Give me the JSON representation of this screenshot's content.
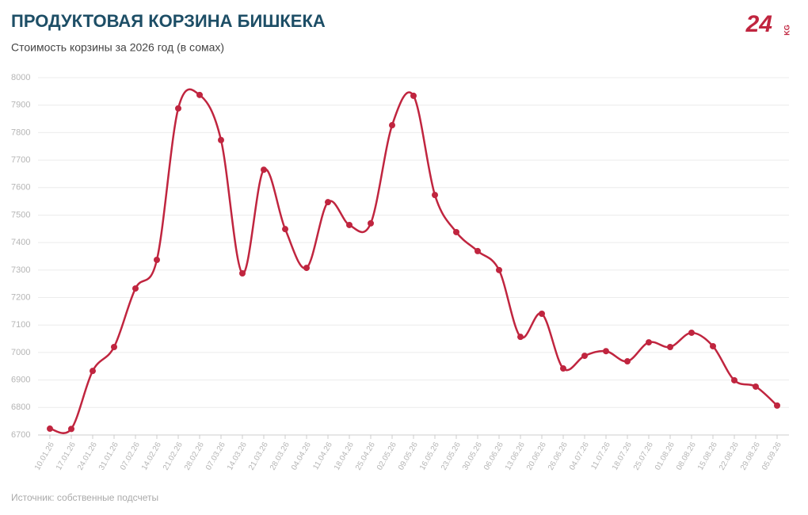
{
  "chart_data": {
    "type": "line",
    "title": "ПРОДУКТОВАЯ КОРЗИНА БИШКЕКА",
    "subtitle": "Стоимость корзины за 2026 год (в сомах)",
    "source": "Источник: собственные подсчеты",
    "logo": {
      "number": "24",
      "suffix": "KG"
    },
    "categories": [
      "10.01.26",
      "17.01.26",
      "24.01.26",
      "31.01.26",
      "07.02.26",
      "14.02.26",
      "21.02.26",
      "28.02.26",
      "07.03.26",
      "14.03.26",
      "21.03.26",
      "28.03.26",
      "04.04.26",
      "11.04.26",
      "18.04.26",
      "25.04.26",
      "02.05.26",
      "09.05.26",
      "16.05.26",
      "23.05.26",
      "30.05.26",
      "06.06.26",
      "13.06.26",
      "20.06.26",
      "26.06.26",
      "04.07.26",
      "11.07.26",
      "18.07.26",
      "25.07.26",
      "01.08.26",
      "08.08.26",
      "15.08.26",
      "22.08.26",
      "29.08.26",
      "05.09.26"
    ],
    "series": [
      {
        "name": "Стоимость корзины",
        "color": "#c0253f",
        "values": [
          6723,
          6722,
          6933,
          7020,
          7233,
          7337,
          7888,
          7937,
          7773,
          7288,
          7665,
          7449,
          7308,
          7547,
          7464,
          7470,
          7827,
          7934,
          7573,
          7438,
          7369,
          7300,
          7057,
          7141,
          6942,
          6988,
          7005,
          6968,
          7037,
          7020,
          7072,
          7023,
          6899,
          6876,
          6807
        ]
      }
    ],
    "ylim": [
      6700,
      8000
    ],
    "yticks": [
      6700,
      6800,
      6900,
      7000,
      7100,
      7200,
      7300,
      7400,
      7500,
      7600,
      7700,
      7800,
      7900,
      8000
    ],
    "grid": true,
    "smooth": true
  }
}
